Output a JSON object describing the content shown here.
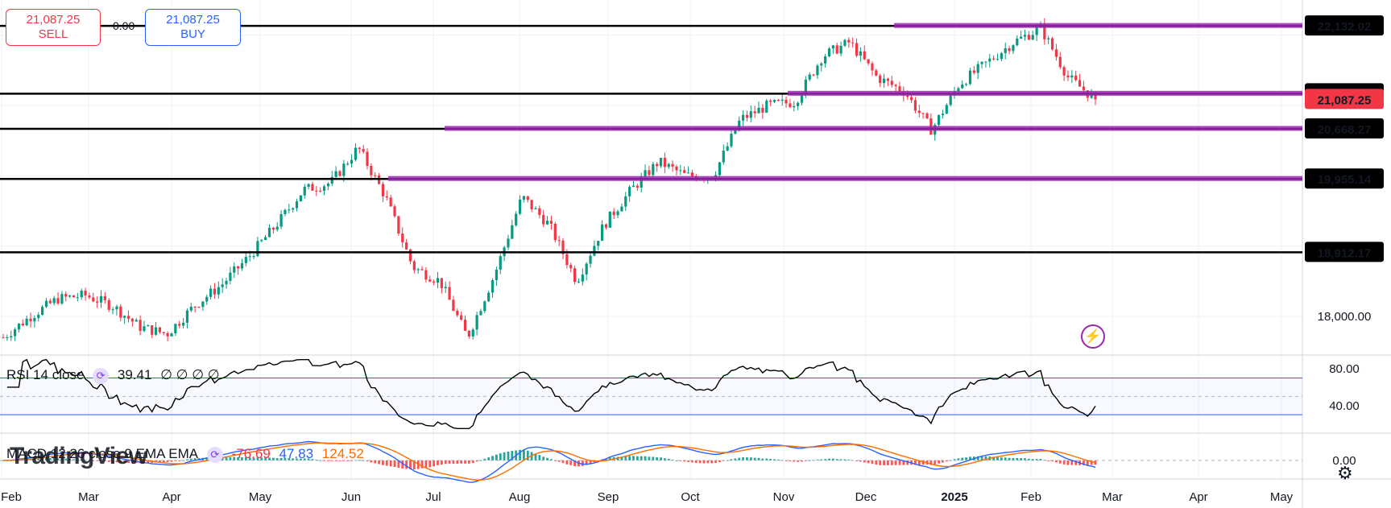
{
  "trade": {
    "sell_price": "21,087.25",
    "sell_label": "SELL",
    "buy_price": "21,087.25",
    "buy_label": "BUY",
    "spread": "0.00"
  },
  "colors": {
    "up": "#089981",
    "down": "#f23645",
    "level": "#000000",
    "zone": "#9c27b0",
    "rsi": "#000000",
    "rsi_band": "#2962ff",
    "macd": "#2962ff",
    "signal": "#ff6d00"
  },
  "rsi_label": {
    "name": "RSI 14 close",
    "value": "39.41",
    "extra": "∅ ∅ ∅ ∅",
    "icon": "cycle-icon"
  },
  "macd_label": {
    "name": "MACD 12 26 close 9 EMA EMA",
    "hist": "-76.69",
    "macd": "47.83",
    "signal": "124.52",
    "icon": "cycle-icon"
  },
  "watermark": "TradingView",
  "flash_icon": "lightning-icon",
  "settings_icon": "gear-icon",
  "chart_data": {
    "type": "candlestick",
    "x_axis": [
      "Feb",
      "Mar",
      "Apr",
      "May",
      "Jun",
      "Jul",
      "Aug",
      "Sep",
      "Oct",
      "Nov",
      "Dec",
      "2025",
      "Feb",
      "Mar",
      "Apr",
      "May"
    ],
    "y_ticks": [
      "18,000.00"
    ],
    "ylim": [
      17450,
      22500
    ],
    "grid": true,
    "levels": [
      {
        "label": "22,132.02",
        "value": 22132.02
      },
      {
        "label": "21,167.70",
        "value": 21167.7
      },
      {
        "label": "20,668.27",
        "value": 20668.27
      },
      {
        "label": "19,955.14",
        "value": 19955.14
      },
      {
        "label": "18,912.17",
        "value": 18912.17
      }
    ],
    "current_price": {
      "label": "21,087.25",
      "value": 21087.25
    },
    "price_path": [
      [
        "Feb",
        17700
      ],
      [
        "Mar",
        18000
      ],
      [
        "Mar",
        18250
      ],
      [
        "Apr",
        18300
      ],
      [
        "Apr",
        18150
      ],
      [
        "Apr",
        17850
      ],
      [
        "May",
        17750
      ],
      [
        "May",
        18150
      ],
      [
        "May",
        18450
      ],
      [
        "Jun",
        18850
      ],
      [
        "Jun",
        19300
      ],
      [
        "Jun",
        19800
      ],
      [
        "Jul",
        19900
      ],
      [
        "Jul",
        20400
      ],
      [
        "Jul",
        19700
      ],
      [
        "Aug",
        18700
      ],
      [
        "Aug",
        18500
      ],
      [
        "Aug",
        17700
      ],
      [
        "Aug",
        18600
      ],
      [
        "Sep",
        19700
      ],
      [
        "Sep",
        19300
      ],
      [
        "Sep",
        18500
      ],
      [
        "Sep",
        19300
      ],
      [
        "Oct",
        19800
      ],
      [
        "Oct",
        20200
      ],
      [
        "Oct",
        20000
      ],
      [
        "Nov",
        20000
      ],
      [
        "Nov",
        20800
      ],
      [
        "Nov",
        21000
      ],
      [
        "Dec",
        21050
      ],
      [
        "Dec",
        21700
      ],
      [
        "Dec",
        21900
      ],
      [
        "2025",
        21400
      ],
      [
        "2025",
        21200
      ],
      [
        "2025",
        20650
      ],
      [
        "Feb",
        21300
      ],
      [
        "Feb",
        21600
      ],
      [
        "Feb",
        21900
      ],
      [
        "Feb",
        22100
      ],
      [
        "Feb",
        21400
      ],
      [
        "Feb",
        21087
      ]
    ],
    "rsi": {
      "ticks": [
        "80.00",
        "40.00"
      ],
      "upper": 70,
      "lower": 30,
      "mid": 50,
      "last": 39.41
    },
    "macd": {
      "ticks": [
        "0.00"
      ],
      "histogram": -76.69,
      "macd": 47.83,
      "signal": 124.52
    }
  }
}
